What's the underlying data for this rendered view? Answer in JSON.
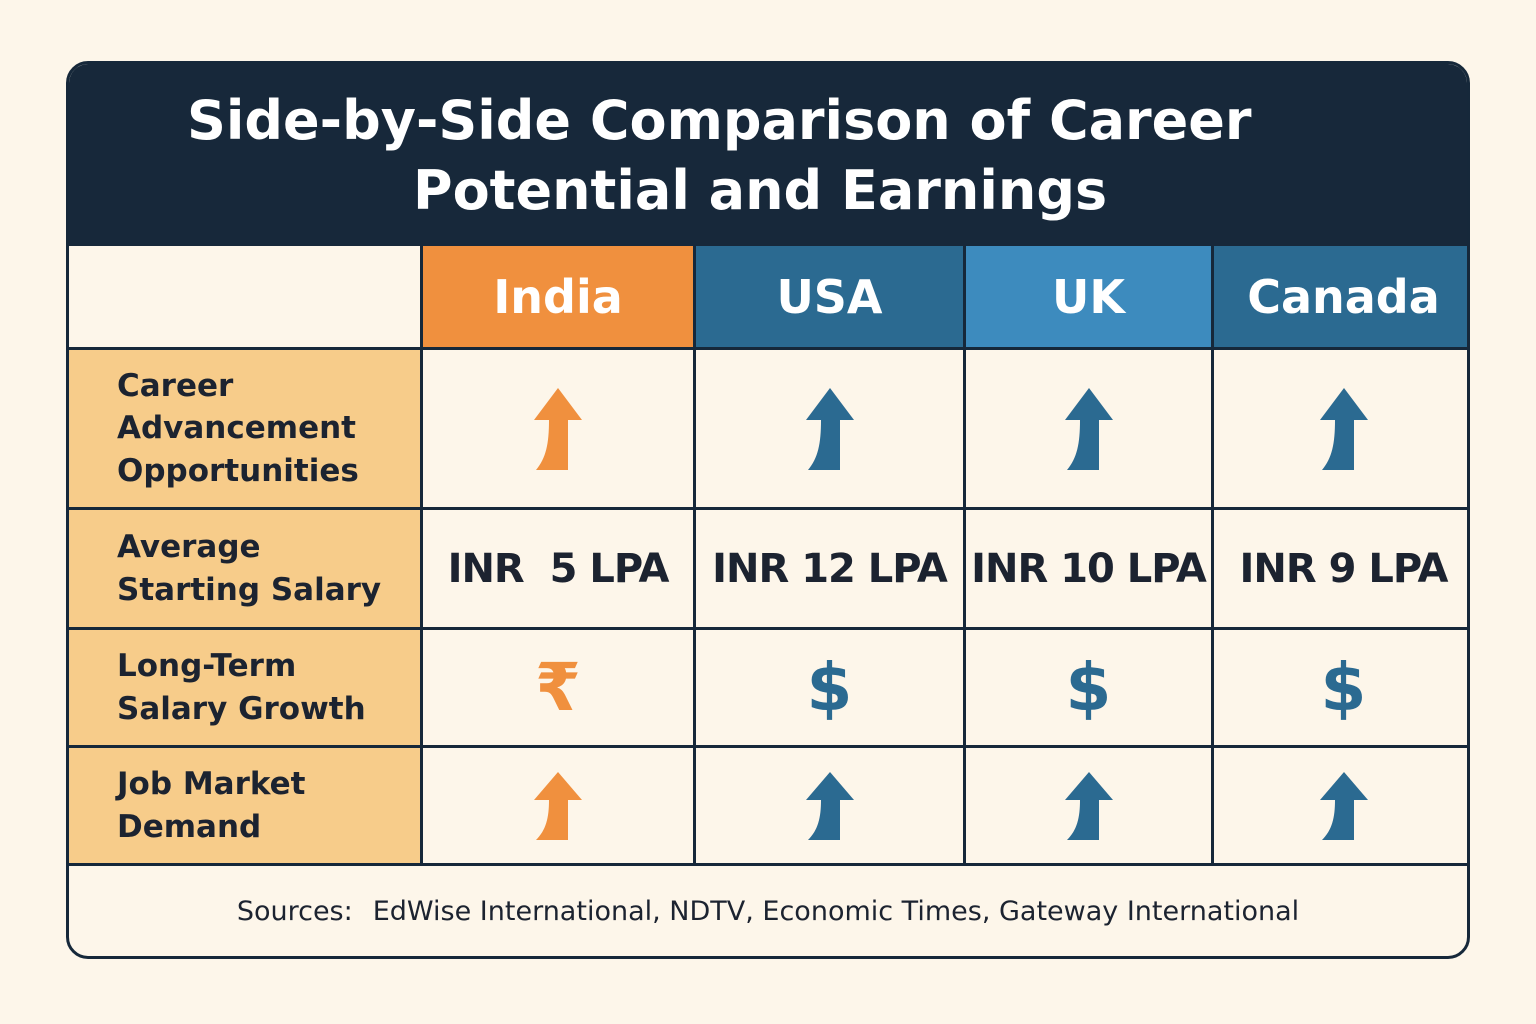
{
  "title": {
    "line1": "Side-by-Side Comparison of Career",
    "line2": "Potential and Earnings"
  },
  "colors": {
    "india": "#f0903e",
    "usa": "#2b6a91",
    "uk": "#3d8bbe",
    "canada": "#2b6a91",
    "title_bar": "#17283a",
    "row_label_bg": "#f7cc8a"
  },
  "columns": [
    "India",
    "USA",
    "UK",
    "Canada"
  ],
  "rows": [
    {
      "label": "Career\nAdvancement\nOpportunities",
      "values": [
        "arrow-up-icon",
        "arrow-up-icon",
        "arrow-up-icon",
        "arrow-up-icon"
      ]
    },
    {
      "label": "Average\nStarting Salary",
      "values": [
        "INR  5 LPA",
        "INR 12 LPA",
        "INR 10 LPA",
        "INR 9 LPA"
      ]
    },
    {
      "label": "Long-Term\nSalary Growth",
      "values": [
        "₹",
        "$",
        "$",
        "$"
      ]
    },
    {
      "label": "Job Market\nDemand",
      "values": [
        "arrow-up-icon",
        "arrow-up-icon",
        "arrow-up-icon",
        "arrow-up-icon"
      ]
    }
  ],
  "footer": {
    "label": "Sources:",
    "text": "EdWise International, NDTV, Economic Times, Gateway International"
  }
}
